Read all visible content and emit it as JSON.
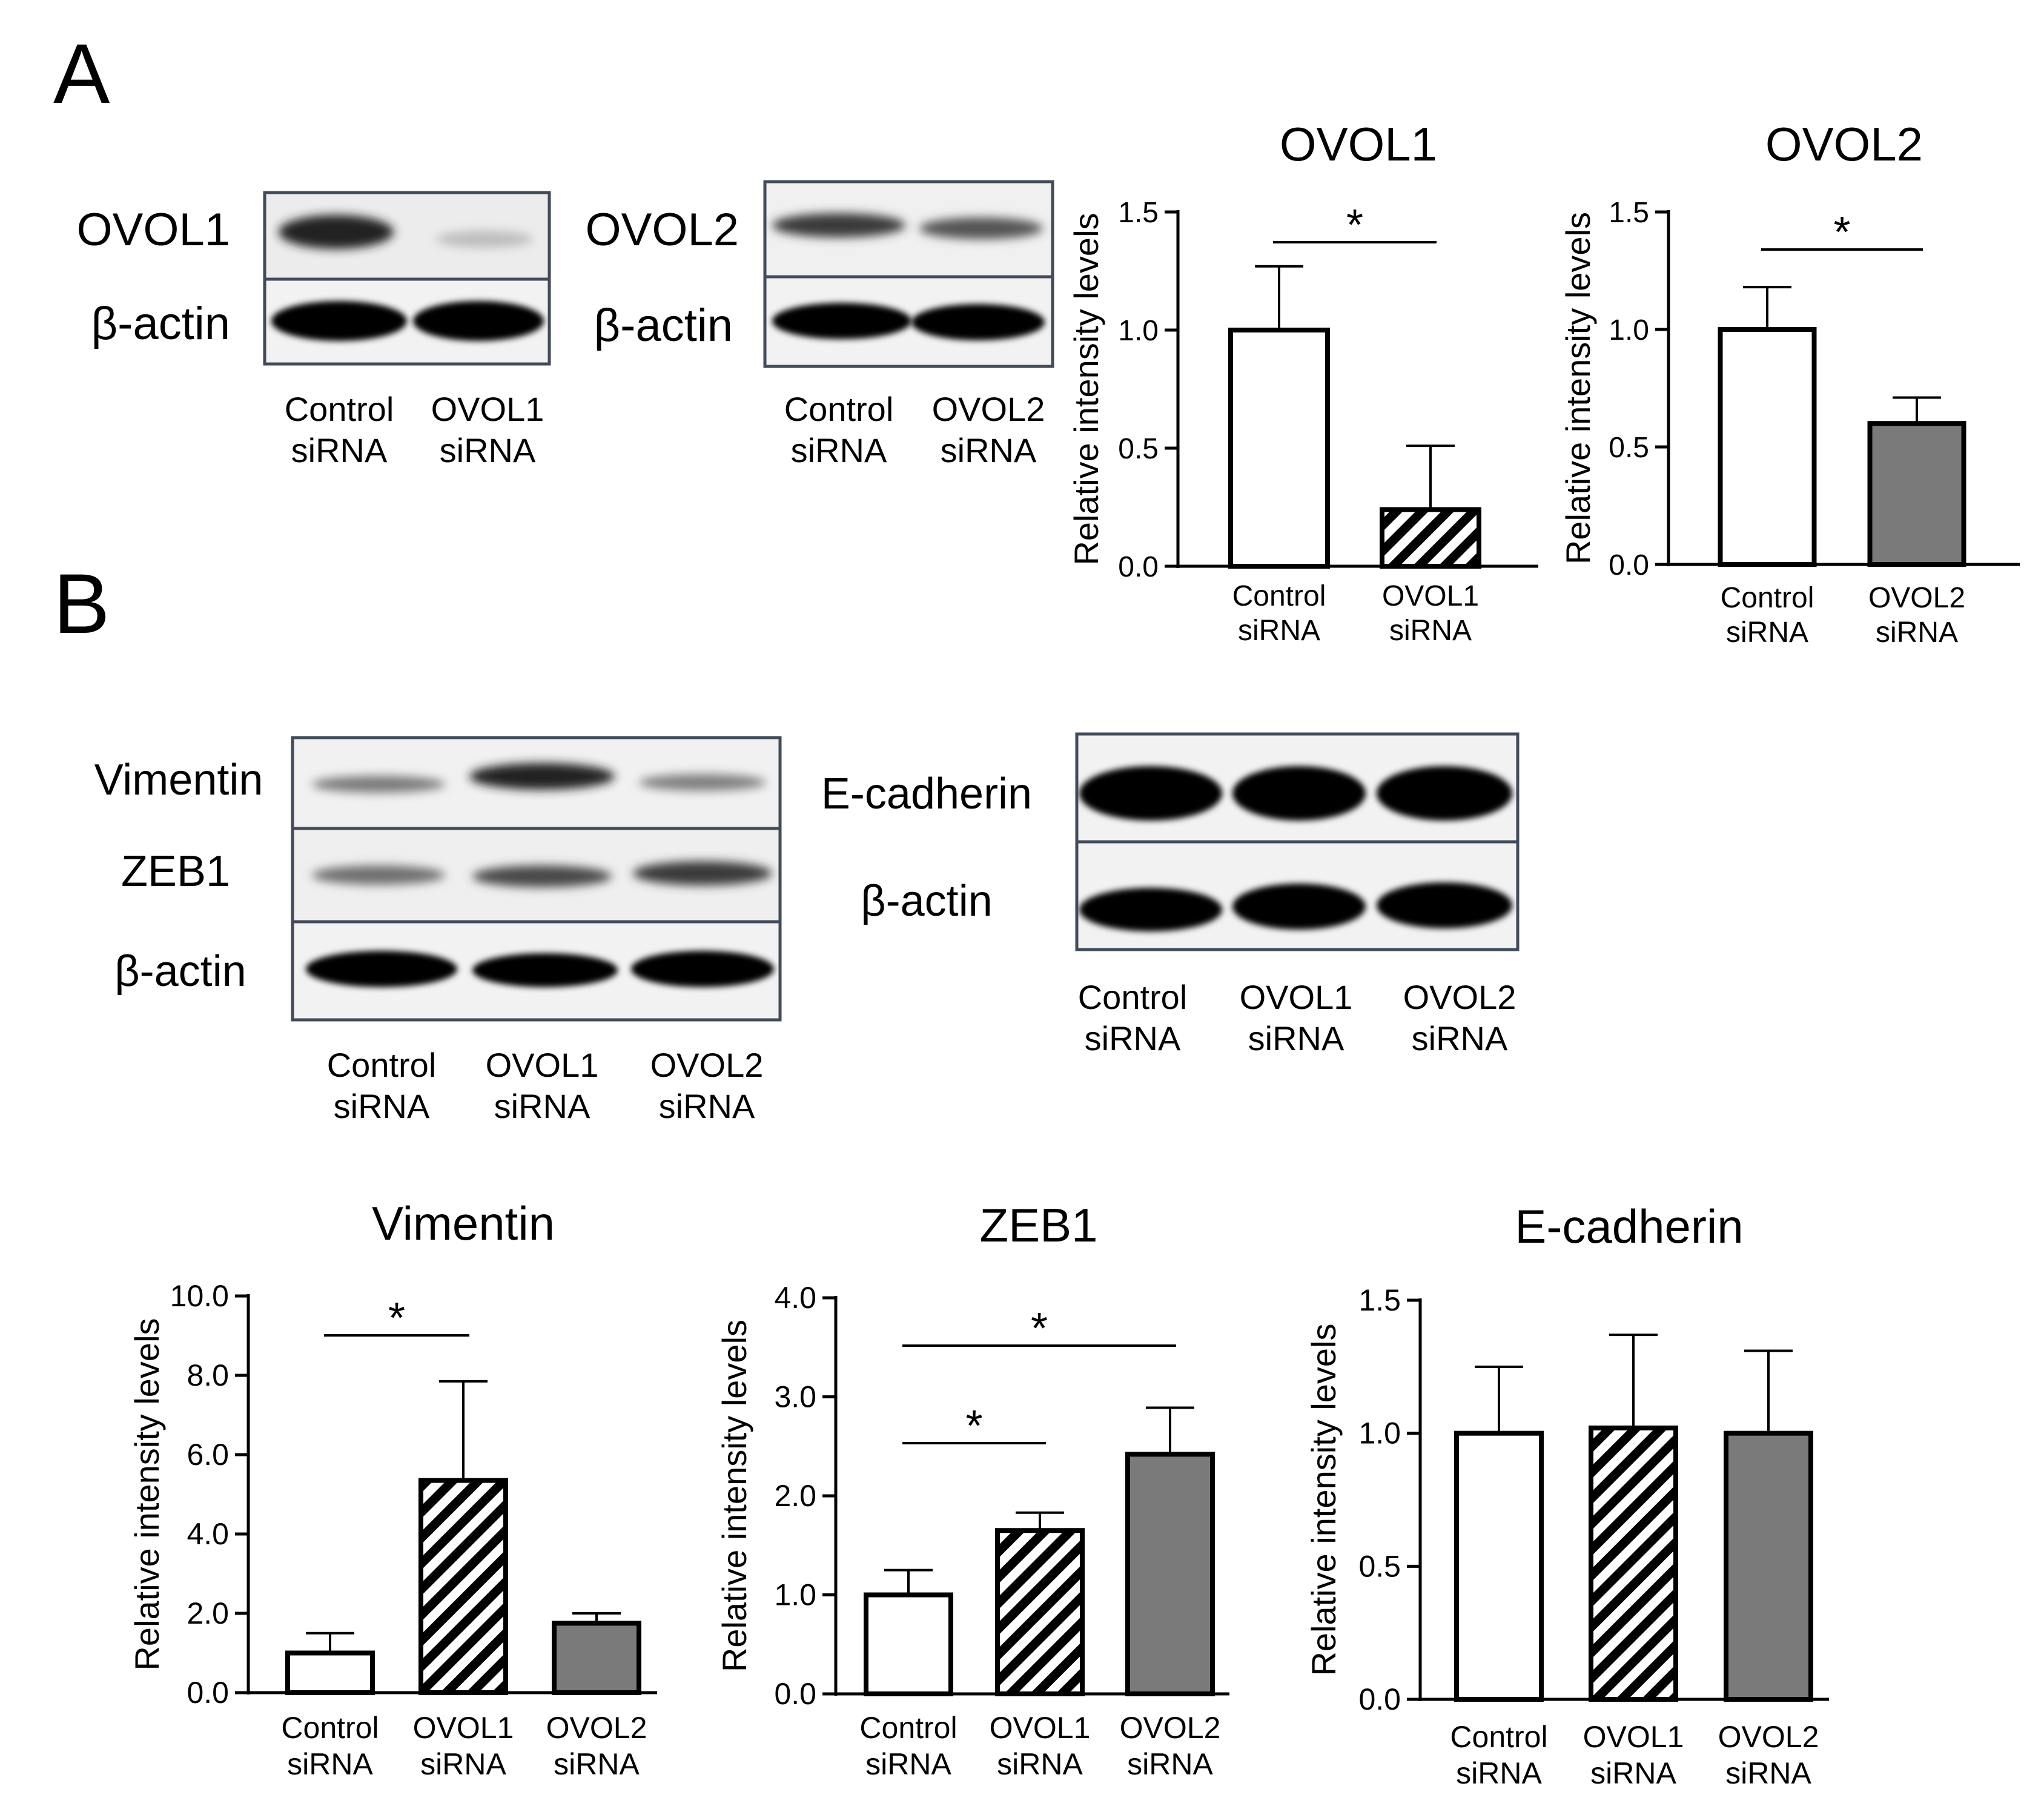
{
  "panel_labels": [
    "A",
    "B"
  ],
  "blots": {
    "ovol1_blot": {
      "rows": [
        "OVOL1",
        "β-actin"
      ],
      "lanes": [
        [
          "Control",
          "siRNA"
        ],
        [
          "OVOL1",
          "siRNA"
        ]
      ]
    },
    "ovol2_blot": {
      "rows": [
        "OVOL2",
        "β-actin"
      ],
      "lanes": [
        [
          "Control",
          "siRNA"
        ],
        [
          "OVOL2",
          "siRNA"
        ]
      ]
    },
    "emt_blot": {
      "rows": [
        "Vimentin",
        "ZEB1",
        "β-actin"
      ],
      "lanes": [
        [
          "Control",
          "siRNA"
        ],
        [
          "OVOL1",
          "siRNA"
        ],
        [
          "OVOL2",
          "siRNA"
        ]
      ]
    },
    "ecad_blot": {
      "rows": [
        "E-cadherin",
        "β-actin"
      ],
      "lanes": [
        [
          "Control",
          "siRNA"
        ],
        [
          "OVOL1",
          "siRNA"
        ],
        [
          "OVOL2",
          "siRNA"
        ]
      ]
    }
  },
  "chart_data": [
    {
      "id": "ovol1",
      "type": "bar",
      "title": "OVOL1",
      "ylabel": "Relative intensity levels",
      "categories": [
        [
          "Control",
          "siRNA"
        ],
        [
          "OVOL1",
          "siRNA"
        ]
      ],
      "values": [
        1.0,
        0.24
      ],
      "errors": [
        0.27,
        0.27
      ],
      "fills": [
        "white",
        "hatch"
      ],
      "ylim": [
        0,
        1.5
      ],
      "yticks": [
        "0.0",
        "0.5",
        "1.0",
        "1.5"
      ],
      "significance": [
        {
          "from": 0,
          "to": 1,
          "label": "*"
        }
      ]
    },
    {
      "id": "ovol2",
      "type": "bar",
      "title": "OVOL2",
      "ylabel": "Relative intensity levels",
      "categories": [
        [
          "Control",
          "siRNA"
        ],
        [
          "OVOL2",
          "siRNA"
        ]
      ],
      "values": [
        1.0,
        0.6
      ],
      "errors": [
        0.18,
        0.11
      ],
      "fills": [
        "white",
        "gray"
      ],
      "ylim": [
        0,
        1.5
      ],
      "yticks": [
        "0.0",
        "0.5",
        "1.0",
        "1.5"
      ],
      "significance": [
        {
          "from": 0,
          "to": 1,
          "label": "*"
        }
      ]
    },
    {
      "id": "vimentin",
      "type": "bar",
      "title": "Vimentin",
      "ylabel": "Relative intensity levels",
      "categories": [
        [
          "Control",
          "siRNA"
        ],
        [
          "OVOL1",
          "siRNA"
        ],
        [
          "OVOL2",
          "siRNA"
        ]
      ],
      "values": [
        1.0,
        5.35,
        1.75
      ],
      "errors": [
        0.5,
        2.5,
        0.25
      ],
      "fills": [
        "white",
        "hatch",
        "gray"
      ],
      "ylim": [
        0,
        10
      ],
      "yticks": [
        "0.0",
        "2.0",
        "4.0",
        "6.0",
        "8.0",
        "10.0"
      ],
      "significance": [
        {
          "from": 0,
          "to": 1,
          "label": "*"
        }
      ]
    },
    {
      "id": "zeb1",
      "type": "bar",
      "title": "ZEB1",
      "ylabel": "Relative intensity levels",
      "categories": [
        [
          "Control",
          "siRNA"
        ],
        [
          "OVOL1",
          "siRNA"
        ],
        [
          "OVOL2",
          "siRNA"
        ]
      ],
      "values": [
        1.0,
        1.65,
        2.42
      ],
      "errors": [
        0.25,
        0.18,
        0.47
      ],
      "fills": [
        "white",
        "hatch",
        "gray"
      ],
      "ylim": [
        0,
        4
      ],
      "yticks": [
        "0.0",
        "1.0",
        "2.0",
        "3.0",
        "4.0"
      ],
      "significance": [
        {
          "from": 0,
          "to": 1,
          "label": "*"
        },
        {
          "from": 0,
          "to": 2,
          "label": "*"
        }
      ]
    },
    {
      "id": "ecadherin",
      "type": "bar",
      "title": "E-cadherin",
      "ylabel": "Relative intensity levels",
      "categories": [
        [
          "Control",
          "siRNA"
        ],
        [
          "OVOL1",
          "siRNA"
        ],
        [
          "OVOL2",
          "siRNA"
        ]
      ],
      "values": [
        1.0,
        1.02,
        1.0
      ],
      "errors": [
        0.25,
        0.35,
        0.31
      ],
      "fills": [
        "white",
        "hatch",
        "gray"
      ],
      "ylim": [
        0,
        1.5
      ],
      "yticks": [
        "0.0",
        "0.5",
        "1.0",
        "1.5"
      ],
      "significance": []
    }
  ]
}
